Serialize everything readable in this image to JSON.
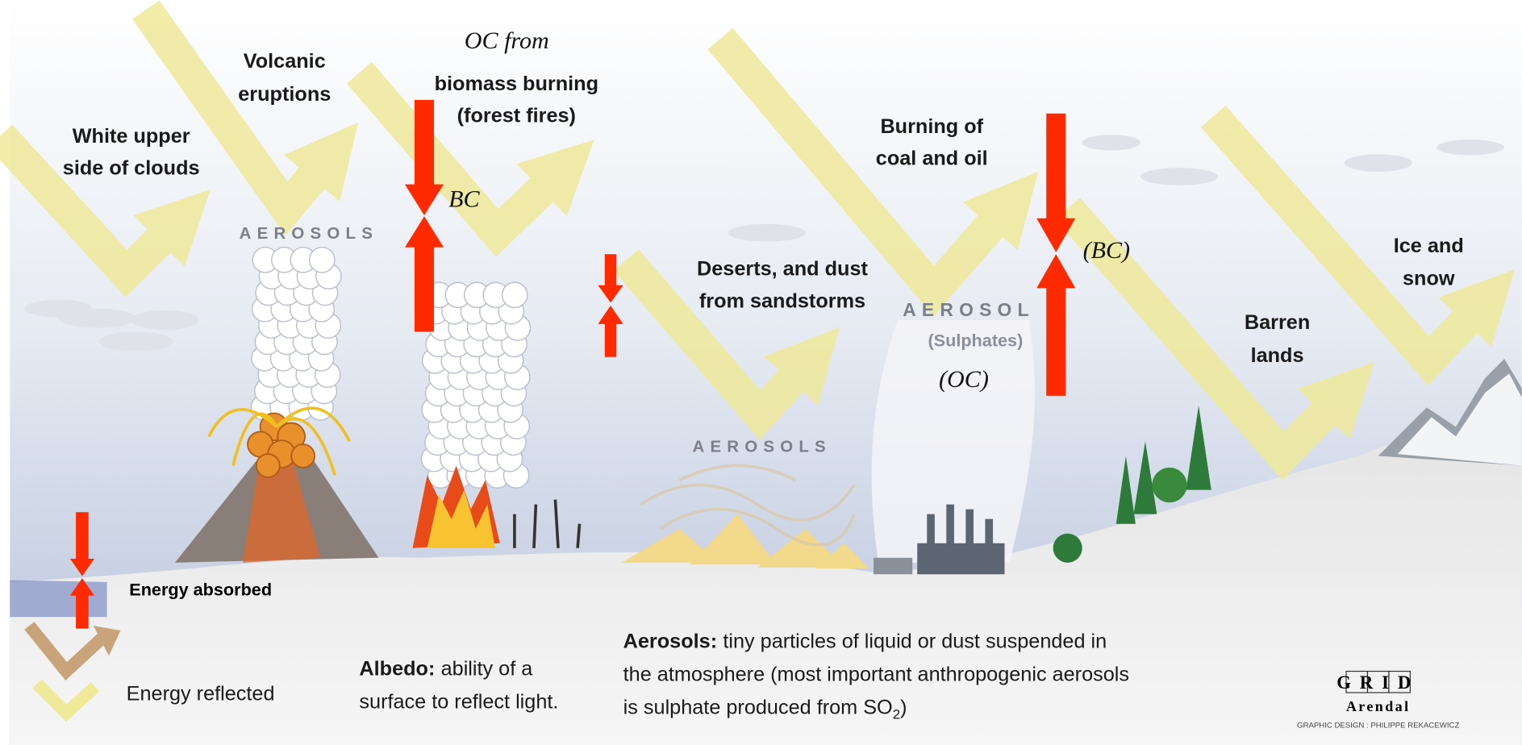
{
  "labels": {
    "clouds": [
      "White upper",
      "side of clouds"
    ],
    "volcanic": [
      "Volcanic",
      "eruptions"
    ],
    "oc_from": "OC from",
    "biomass": [
      "biomass burning",
      "(forest fires)"
    ],
    "bc_biomass": "BC",
    "deserts": [
      "Deserts, and dust",
      "from sandstorms"
    ],
    "burning": [
      "Burning of",
      "coal and oil"
    ],
    "sulphates": "(Sulphates)",
    "oc_industry": "(OC)",
    "bc_industry": "(BC)",
    "ice": [
      "Ice and",
      "snow"
    ],
    "barren": [
      "Barren",
      "lands"
    ],
    "aerosols": [
      "AEROSOLS",
      "AEROSOLS",
      "AEROSOL"
    ]
  },
  "legend": {
    "absorbed": "Energy absorbed",
    "reflected": "Energy reflected"
  },
  "definitions": {
    "albedo": {
      "term": "Albedo:",
      "lines": [
        "ability of a",
        "surface to reflect light."
      ]
    },
    "aerosols": {
      "term": "Aerosols:",
      "lines": [
        "tiny particles of liquid or dust suspended in",
        "the atmosphere (most important anthropogenic aerosols",
        "is sulphate produced from SO"
      ],
      "subscript": "2",
      "end": ")"
    }
  },
  "credit": {
    "logo_top": "GRID",
    "logo_bottom": "Arendal",
    "designer": "GRAPHIC DESIGN : PHILIPPE REKACEWICZ"
  }
}
